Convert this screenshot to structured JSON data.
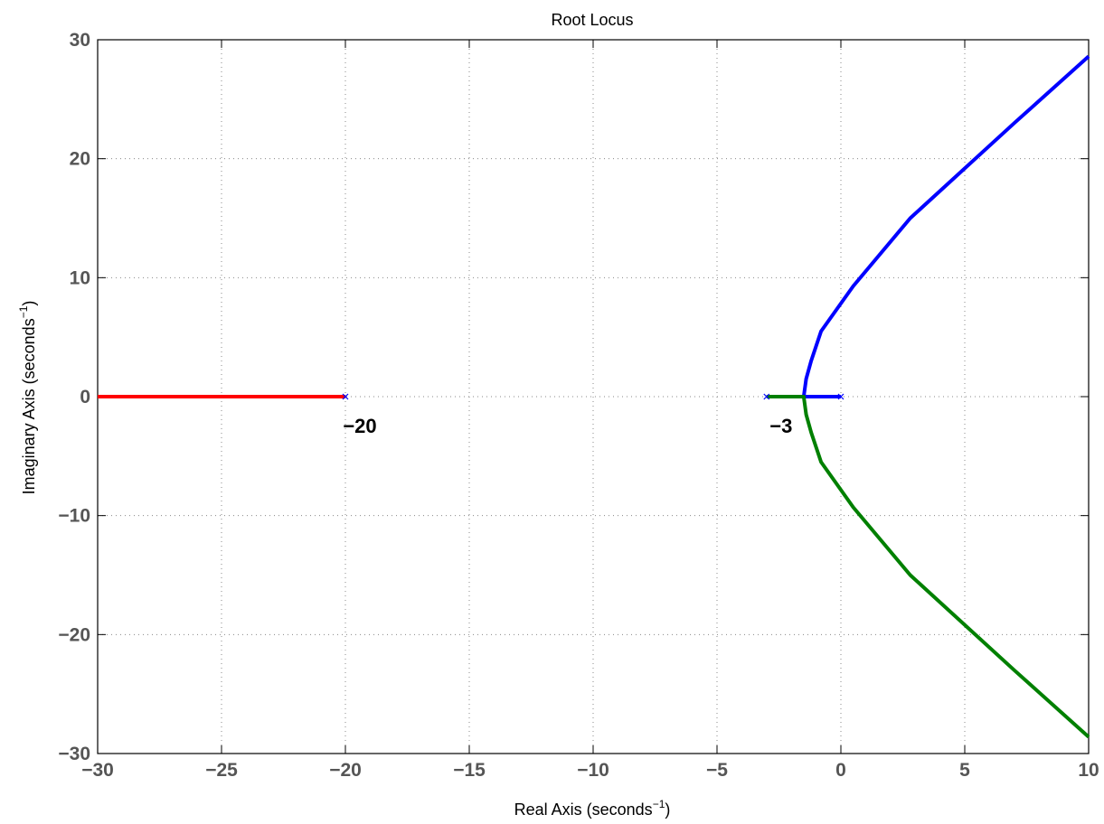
{
  "chart_data": {
    "type": "line",
    "title": "Root Locus",
    "xlabel": {
      "text": "Real Axis (seconds",
      "sup": "−1",
      "suffix": ")"
    },
    "ylabel": {
      "text": "Imaginary Axis (seconds",
      "sup": "−1",
      "suffix": ")"
    },
    "xlim": [
      -30,
      10
    ],
    "ylim": [
      -30,
      30
    ],
    "xticks": [
      -30,
      -25,
      -20,
      -15,
      -10,
      -5,
      0,
      5,
      10
    ],
    "yticks": [
      -30,
      -20,
      -10,
      0,
      10,
      20,
      30
    ],
    "xtick_labels": [
      "−30",
      "−25",
      "−20",
      "−15",
      "−10",
      "−5",
      "0",
      "5",
      "10"
    ],
    "ytick_labels": [
      "−30",
      "−20",
      "−10",
      "0",
      "10",
      "20",
      "30"
    ],
    "grid": true,
    "grid_style": "dotted",
    "series": [
      {
        "color": "#ff0000",
        "points": [
          [
            -20,
            0
          ],
          [
            -30,
            0
          ]
        ]
      },
      {
        "color": "#0000ff",
        "points": [
          [
            0,
            0
          ],
          [
            -1.5,
            0
          ],
          [
            -1.4,
            1.5
          ],
          [
            -1.2,
            3.0
          ],
          [
            -0.8,
            5.5
          ],
          [
            0.5,
            9.3
          ],
          [
            2.8,
            15.0
          ],
          [
            7.0,
            23.0
          ],
          [
            10.0,
            28.6
          ]
        ]
      },
      {
        "color": "#008000",
        "points": [
          [
            -3,
            0
          ],
          [
            -1.5,
            0
          ],
          [
            -1.4,
            -1.5
          ],
          [
            -1.2,
            -3.0
          ],
          [
            -0.8,
            -5.5
          ],
          [
            0.5,
            -9.3
          ],
          [
            2.8,
            -15.0
          ],
          [
            7.0,
            -23.0
          ],
          [
            10.0,
            -28.6
          ]
        ]
      }
    ],
    "poles": [
      {
        "x": -20,
        "y": 0,
        "color": "#0000ff"
      },
      {
        "x": -3,
        "y": 0,
        "color": "#0000ff"
      },
      {
        "x": 0,
        "y": 0,
        "color": "#0000ff"
      }
    ],
    "annotations": [
      {
        "text": "−20",
        "x": -20,
        "y": 0
      },
      {
        "text": "−3",
        "x": -3,
        "y": 0
      }
    ]
  }
}
